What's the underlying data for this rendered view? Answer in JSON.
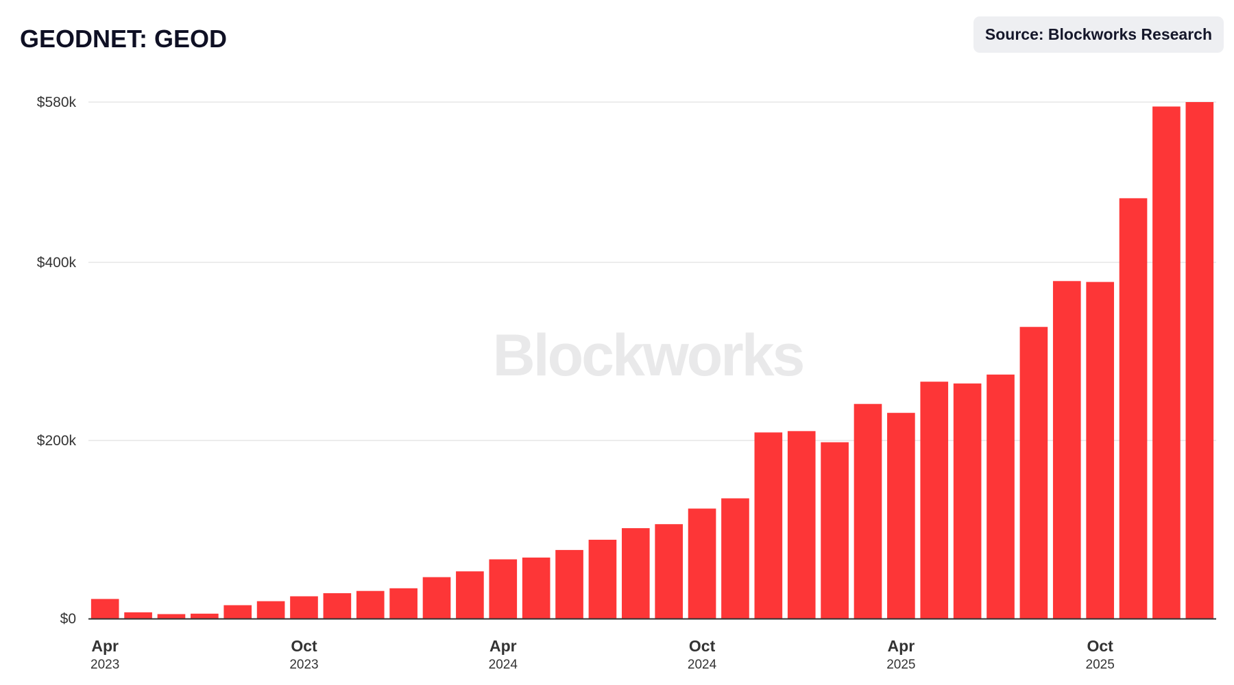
{
  "header": {
    "title": "GEODNET: GEOD",
    "source": "Source: Blockworks Research"
  },
  "watermark": "Blockworks",
  "colors": {
    "bar": "#fd3637",
    "grid": "#e6e6e6",
    "axis": "#333333",
    "title": "#0f1024"
  },
  "chart_data": {
    "type": "bar",
    "title": "GEODNET: GEOD",
    "xlabel": "",
    "ylabel": "",
    "ylim": [
      0,
      580000
    ],
    "grid": true,
    "legend": "none",
    "y_ticks": [
      {
        "value": 0,
        "label": "$0"
      },
      {
        "value": 200000,
        "label": "$200k"
      },
      {
        "value": 400000,
        "label": "$400k"
      },
      {
        "value": 580000,
        "label": "$580k"
      }
    ],
    "x_ticks": [
      {
        "index": 0,
        "month": "Apr",
        "year": "2023"
      },
      {
        "index": 6,
        "month": "Oct",
        "year": "2023"
      },
      {
        "index": 12,
        "month": "Apr",
        "year": "2024"
      },
      {
        "index": 18,
        "month": "Oct",
        "year": "2024"
      },
      {
        "index": 24,
        "month": "Apr",
        "year": "2025"
      },
      {
        "index": 30,
        "month": "Oct",
        "year": "2025"
      }
    ],
    "categories": [
      "2023-04",
      "2023-05",
      "2023-06",
      "2023-07",
      "2023-08",
      "2023-09",
      "2023-10",
      "2023-11",
      "2023-12",
      "2024-01",
      "2024-02",
      "2024-03",
      "2024-04",
      "2024-05",
      "2024-06",
      "2024-07",
      "2024-08",
      "2024-09",
      "2024-10",
      "2024-11",
      "2024-12",
      "2025-01",
      "2025-02",
      "2025-03",
      "2025-04",
      "2025-05",
      "2025-06",
      "2025-07",
      "2025-08",
      "2025-09",
      "2025-10",
      "2025-11",
      "2025-12",
      "2026-01"
    ],
    "values": [
      22000,
      7000,
      5000,
      5500,
      15000,
      19500,
      25000,
      28500,
      31000,
      34000,
      46500,
      53000,
      66500,
      68500,
      77000,
      88500,
      101500,
      106000,
      123500,
      135000,
      209000,
      210500,
      198000,
      241000,
      231000,
      266000,
      264000,
      274000,
      327500,
      379000,
      378000,
      472000,
      575000,
      580000
    ]
  }
}
